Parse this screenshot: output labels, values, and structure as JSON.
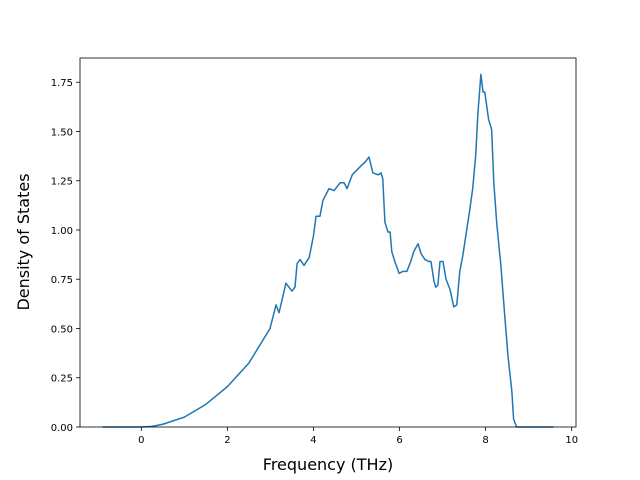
{
  "chart_data": {
    "type": "line",
    "x_label": "Frequency (THz)",
    "y_label": "Density of States",
    "xlim": [
      -1.425,
      10.1
    ],
    "ylim": [
      0,
      1.873
    ],
    "xticks": [
      0,
      2,
      4,
      6,
      8,
      10
    ],
    "yticks": [
      {
        "value": 0,
        "label": "0.00"
      },
      {
        "value": 0.25,
        "label": "0.25"
      },
      {
        "value": 0.5,
        "label": "0.50"
      },
      {
        "value": 0.75,
        "label": "0.75"
      },
      {
        "value": 1,
        "label": "1.00"
      },
      {
        "value": 1.25,
        "label": "1.25"
      },
      {
        "value": 1.5,
        "label": "1.50"
      },
      {
        "value": 1.75,
        "label": "1.75"
      }
    ],
    "series": [
      {
        "color": "#1f77b4",
        "x": [
          -0.9,
          0,
          0.25,
          0.5,
          1,
          1.5,
          2,
          2.5,
          2.99,
          3.13,
          3.2,
          3.36,
          3.5,
          3.57,
          3.62,
          3.69,
          3.78,
          3.9,
          4.0,
          4.06,
          4.15,
          4.22,
          4.36,
          4.48,
          4.62,
          4.71,
          4.78,
          4.9,
          5.08,
          5.22,
          5.29,
          5.38,
          5.5,
          5.57,
          5.61,
          5.66,
          5.73,
          5.78,
          5.82,
          5.89,
          5.99,
          6.08,
          6.17,
          6.26,
          6.33,
          6.43,
          6.5,
          6.59,
          6.68,
          6.73,
          6.8,
          6.84,
          6.89,
          6.94,
          7.01,
          7.08,
          7.17,
          7.26,
          7.33,
          7.4,
          7.47,
          7.56,
          7.63,
          7.7,
          7.77,
          7.82,
          7.89,
          7.94,
          7.98,
          8.07,
          8.14,
          8.19,
          8.26,
          8.35,
          8.45,
          8.52,
          8.61,
          8.65,
          8.72,
          9.58
        ],
        "values": [
          0,
          0,
          0.003,
          0.014,
          0.05,
          0.115,
          0.205,
          0.325,
          0.5,
          0.62,
          0.58,
          0.73,
          0.69,
          0.71,
          0.83,
          0.85,
          0.82,
          0.86,
          0.97,
          1.07,
          1.07,
          1.15,
          1.21,
          1.2,
          1.24,
          1.24,
          1.21,
          1.28,
          1.32,
          1.35,
          1.37,
          1.29,
          1.28,
          1.29,
          1.26,
          1.04,
          0.99,
          0.99,
          0.89,
          0.84,
          0.78,
          0.79,
          0.79,
          0.84,
          0.89,
          0.93,
          0.88,
          0.85,
          0.84,
          0.84,
          0.74,
          0.71,
          0.72,
          0.84,
          0.84,
          0.75,
          0.7,
          0.61,
          0.62,
          0.79,
          0.87,
          1.0,
          1.1,
          1.21,
          1.38,
          1.59,
          1.79,
          1.7,
          1.7,
          1.56,
          1.51,
          1.24,
          1.03,
          0.83,
          0.55,
          0.36,
          0.18,
          0.04,
          0,
          0
        ]
      }
    ]
  }
}
